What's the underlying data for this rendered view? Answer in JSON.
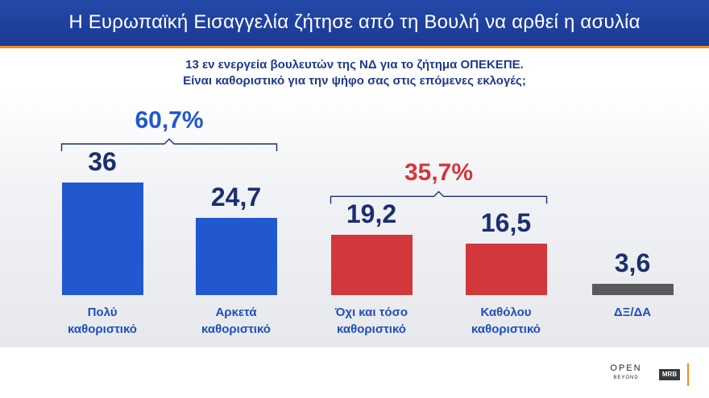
{
  "header": {
    "title": "Η Ευρωπαϊκή Εισαγγελία ζήτησε από τη Βουλή να αρθεί η ασυλία"
  },
  "question": {
    "line1": "13 εν ενεργεία βουλευτών της ΝΔ για το ζήτημα ΟΠΕΚΕΠΕ.",
    "line2": "Είναι καθοριστικό για την ψήφο σας στις επόμενες εκλογές;"
  },
  "chart_data": {
    "type": "bar",
    "title": "",
    "xlabel": "",
    "ylabel": "",
    "categories": [
      [
        "Πολύ",
        "καθοριστικό"
      ],
      [
        "Αρκετά",
        "καθοριστικό"
      ],
      [
        "Όχι και τόσο",
        "καθοριστικό"
      ],
      [
        "Καθόλου",
        "καθοριστικό"
      ],
      [
        "ΔΞ/ΔΑ"
      ]
    ],
    "values": [
      36,
      24.7,
      19.2,
      16.5,
      3.6
    ],
    "value_labels": [
      "36",
      "24,7",
      "19,2",
      "16,5",
      "3,6"
    ],
    "colors": [
      "#2158cf",
      "#2158cf",
      "#d2373c",
      "#d2373c",
      "#5a5a5a"
    ],
    "groups": [
      {
        "label": "60,7%",
        "members": [
          0,
          1
        ],
        "color": "#2158cf"
      },
      {
        "label": "35,7%",
        "members": [
          2,
          3
        ],
        "color": "#d2373c"
      }
    ],
    "ylim": [
      0,
      36
    ],
    "grid": false,
    "legend": "none"
  },
  "footer": {
    "brand": "OPEN",
    "tagline": "BEYOND",
    "partner": "MRB"
  },
  "colors": {
    "header_bg": "#1f3f9e",
    "accent": "#f28a1e",
    "blue": "#2158cf",
    "red": "#d2373c",
    "gray": "#5a5a5a"
  }
}
